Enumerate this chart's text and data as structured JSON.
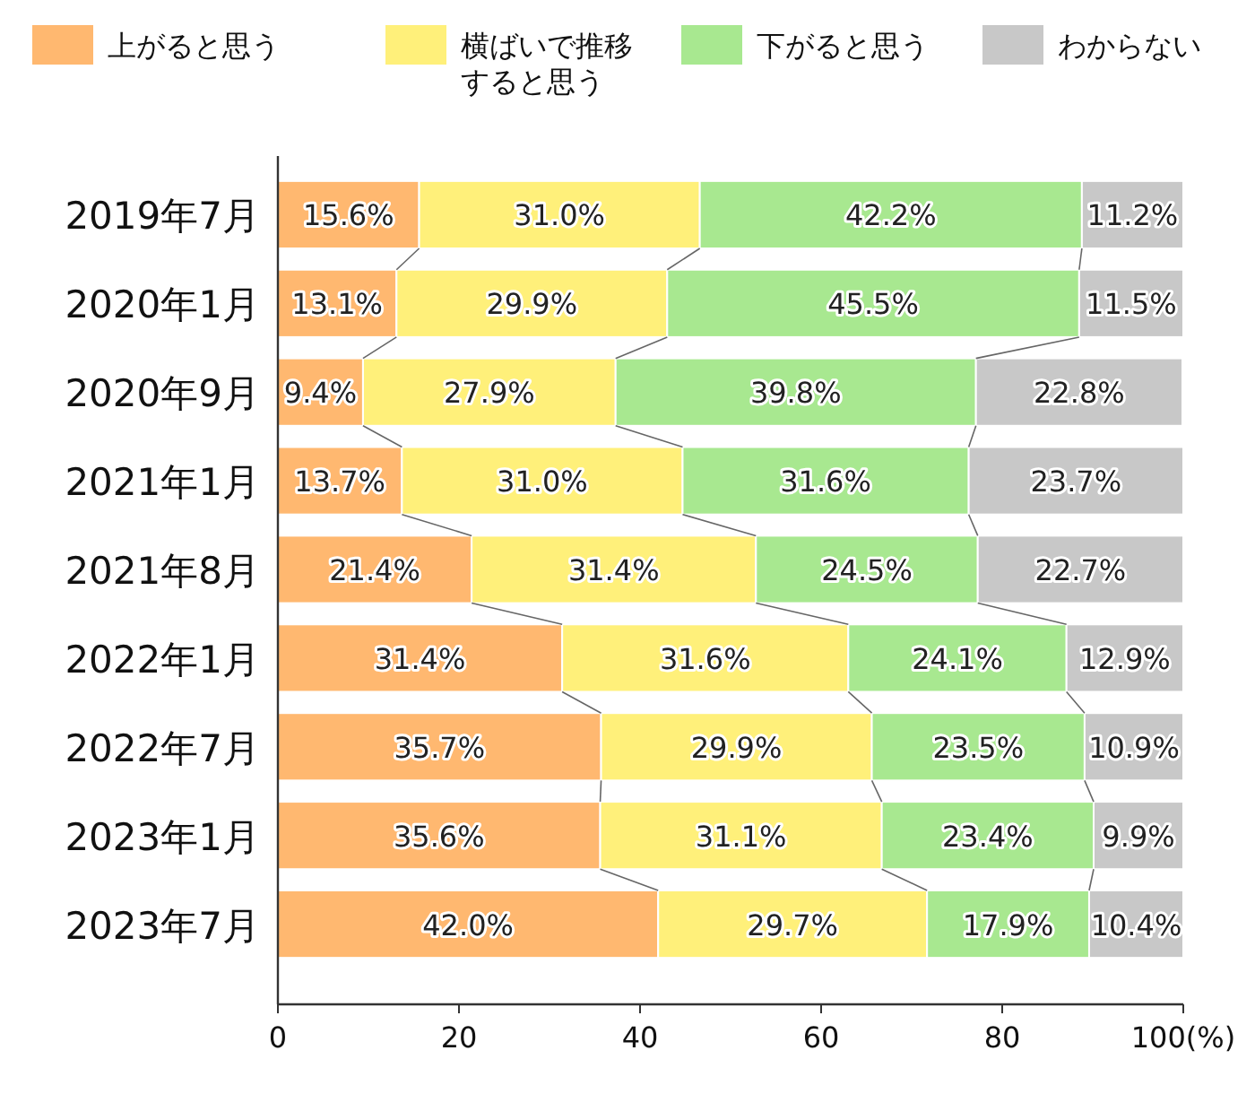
{
  "chart_data": {
    "type": "bar",
    "orientation": "horizontal",
    "stacked": true,
    "legend": "top",
    "grid": false,
    "categories": [
      "2019年7月",
      "2020年1月",
      "2020年9月",
      "2021年1月",
      "2021年8月",
      "2022年1月",
      "2022年7月",
      "2023年1月",
      "2023年7月"
    ],
    "xlim": [
      0,
      100
    ],
    "xticks": [
      0,
      20,
      40,
      60,
      80,
      {
        "value": 100,
        "label": "100(%)"
      }
    ],
    "series": [
      {
        "name": "上がると思う",
        "color": "#ffb870",
        "values": [
          15.6,
          13.1,
          9.4,
          13.7,
          21.4,
          31.4,
          35.7,
          35.6,
          42.0
        ],
        "value_labels": [
          "15.6%",
          "13.1%",
          "9.4%",
          "13.7%",
          "21.4%",
          "31.4%",
          "35.7%",
          "35.6%",
          "42.0%"
        ]
      },
      {
        "name": "横ばいで推移すると思う",
        "color": "#fff07a",
        "values": [
          31.0,
          29.9,
          27.9,
          31.0,
          31.4,
          31.6,
          29.9,
          31.1,
          29.7
        ],
        "value_labels": [
          "31.0%",
          "29.9%",
          "27.9%",
          "31.0%",
          "31.4%",
          "31.6%",
          "29.9%",
          "31.1%",
          "29.7%"
        ]
      },
      {
        "name": "下がると思う",
        "color": "#a8e890",
        "values": [
          42.2,
          45.5,
          39.8,
          31.6,
          24.5,
          24.1,
          23.5,
          23.4,
          17.9
        ],
        "value_labels": [
          "42.2%",
          "45.5%",
          "39.8%",
          "31.6%",
          "24.5%",
          "24.1%",
          "23.5%",
          "23.4%",
          "17.9%"
        ]
      },
      {
        "name": "わからない",
        "color": "#c8c8c8",
        "values": [
          11.2,
          11.5,
          22.8,
          23.7,
          22.7,
          12.9,
          10.9,
          9.9,
          10.4
        ],
        "value_labels": [
          "11.2%",
          "11.5%",
          "22.8%",
          "23.7%",
          "22.7%",
          "12.9%",
          "10.9%",
          "9.9%",
          "10.4%"
        ]
      }
    ]
  }
}
